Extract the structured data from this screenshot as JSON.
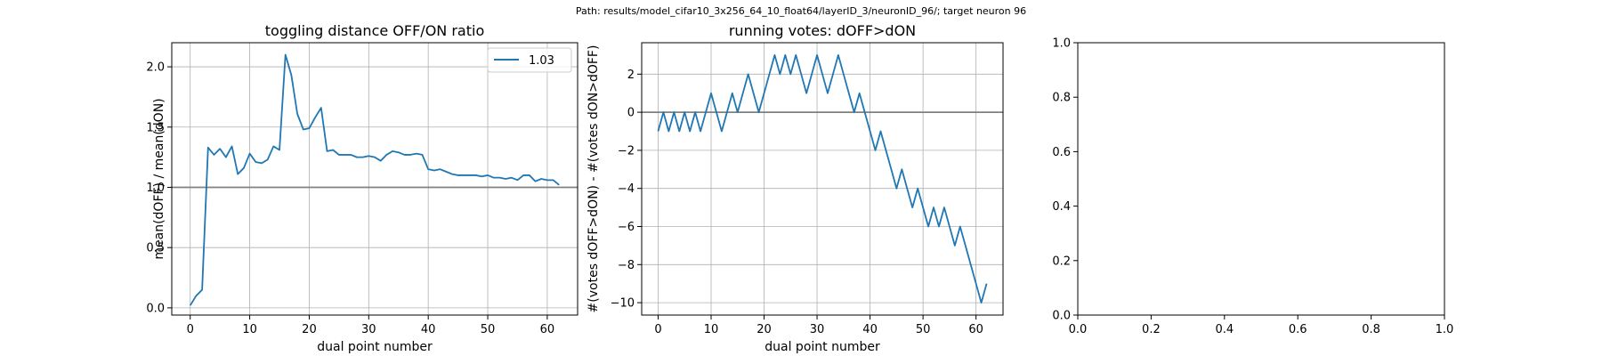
{
  "suptitle": "Path: results/model_cifar10_3x256_64_10_float64/layerID_3/neuronID_96/; target neuron 96",
  "colors": {
    "series": "#1f77b4",
    "refline": "#808080",
    "grid": "#b0b0b0",
    "axis": "#000000"
  },
  "chart_data": [
    {
      "type": "line",
      "title": "toggling distance OFF/ON ratio",
      "xlabel": "dual point number",
      "ylabel": "mean(dOFF) / mean(dON)",
      "xlim": [
        -3.1,
        65.1
      ],
      "ylim": [
        -0.06,
        2.2
      ],
      "xticks": [
        0,
        10,
        20,
        30,
        40,
        50,
        60
      ],
      "yticks": [
        0.0,
        0.5,
        1.0,
        1.5,
        2.0
      ],
      "ytick_labels": [
        "0.0",
        "0.5",
        "1.0",
        "1.5",
        "2.0"
      ],
      "grid": true,
      "legend": {
        "location": "upper right",
        "entries": [
          "1.03"
        ]
      },
      "hline": 1.0,
      "series": [
        {
          "name": "1.03",
          "x": [
            0,
            1,
            2,
            3,
            4,
            5,
            6,
            7,
            8,
            9,
            10,
            11,
            12,
            13,
            14,
            15,
            16,
            17,
            18,
            19,
            20,
            21,
            22,
            23,
            24,
            25,
            26,
            27,
            28,
            29,
            30,
            31,
            32,
            33,
            34,
            35,
            36,
            37,
            38,
            39,
            40,
            41,
            42,
            43,
            44,
            45,
            46,
            47,
            48,
            49,
            50,
            51,
            52,
            53,
            54,
            55,
            56,
            57,
            58,
            59,
            60,
            61,
            62
          ],
          "y": [
            0.02,
            0.1,
            0.15,
            1.33,
            1.27,
            1.32,
            1.25,
            1.34,
            1.11,
            1.16,
            1.28,
            1.21,
            1.2,
            1.23,
            1.34,
            1.31,
            2.1,
            1.93,
            1.61,
            1.48,
            1.49,
            1.58,
            1.66,
            1.3,
            1.31,
            1.27,
            1.27,
            1.27,
            1.25,
            1.25,
            1.26,
            1.25,
            1.22,
            1.27,
            1.3,
            1.29,
            1.27,
            1.27,
            1.28,
            1.27,
            1.15,
            1.14,
            1.15,
            1.13,
            1.11,
            1.1,
            1.1,
            1.1,
            1.1,
            1.09,
            1.1,
            1.08,
            1.08,
            1.07,
            1.08,
            1.06,
            1.1,
            1.1,
            1.05,
            1.07,
            1.06,
            1.06,
            1.02
          ]
        }
      ]
    },
    {
      "type": "line",
      "title": "running votes: dOFF>dON",
      "xlabel": "dual point number",
      "ylabel": "#(votes dOFF>dON) - #(votes dON>dOFF)",
      "xlim": [
        -3.1,
        65.1
      ],
      "ylim": [
        -10.65,
        3.65
      ],
      "xticks": [
        0,
        10,
        20,
        30,
        40,
        50,
        60
      ],
      "yticks": [
        -10,
        -8,
        -6,
        -4,
        -2,
        0,
        2
      ],
      "ytick_labels": [
        "−10",
        "−8",
        "−6",
        "−4",
        "−2",
        "0",
        "2"
      ],
      "grid": true,
      "hline": 0,
      "series": [
        {
          "x": [
            0,
            1,
            2,
            3,
            4,
            5,
            6,
            7,
            8,
            9,
            10,
            11,
            12,
            13,
            14,
            15,
            16,
            17,
            18,
            19,
            20,
            21,
            22,
            23,
            24,
            25,
            26,
            27,
            28,
            29,
            30,
            31,
            32,
            33,
            34,
            35,
            36,
            37,
            38,
            39,
            40,
            41,
            42,
            43,
            44,
            45,
            46,
            47,
            48,
            49,
            50,
            51,
            52,
            53,
            54,
            55,
            56,
            57,
            58,
            59,
            60,
            61,
            62
          ],
          "y": [
            -1,
            0,
            -1,
            0,
            -1,
            0,
            -1,
            0,
            -1,
            0,
            1,
            0,
            -1,
            0,
            1,
            0,
            1,
            2,
            1,
            0,
            1,
            2,
            3,
            2,
            3,
            2,
            3,
            2,
            1,
            2,
            3,
            2,
            1,
            2,
            3,
            2,
            1,
            0,
            1,
            0,
            -1,
            -2,
            -1,
            -2,
            -3,
            -4,
            -3,
            -4,
            -5,
            -4,
            -5,
            -6,
            -5,
            -6,
            -5,
            -6,
            -7,
            -6,
            -7,
            -8,
            -9,
            -10,
            -9
          ]
        }
      ]
    },
    {
      "type": "line",
      "title": "",
      "xlabel": "",
      "ylabel": "",
      "xlim": [
        0,
        1
      ],
      "ylim": [
        0,
        1
      ],
      "xticks": [
        0,
        0.2,
        0.4,
        0.6,
        0.8,
        1.0
      ],
      "yticks": [
        0,
        0.2,
        0.4,
        0.6,
        0.8,
        1.0
      ],
      "xtick_labels": [
        "0.0",
        "0.2",
        "0.4",
        "0.6",
        "0.8",
        "1.0"
      ],
      "ytick_labels": [
        "0.0",
        "0.2",
        "0.4",
        "0.6",
        "0.8",
        "1.0"
      ],
      "grid": false,
      "series": []
    }
  ]
}
